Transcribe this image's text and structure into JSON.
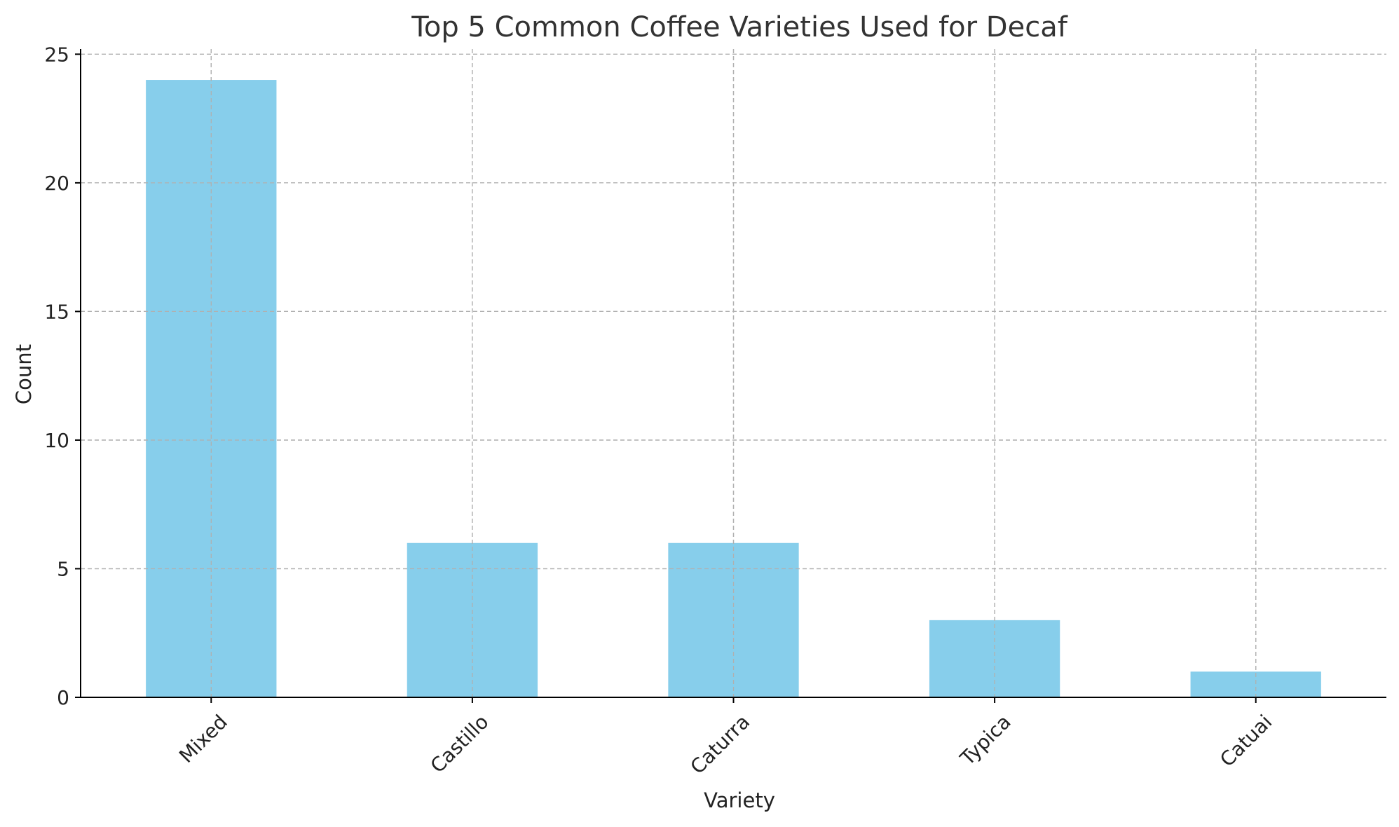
{
  "chart_data": {
    "type": "bar",
    "title": "Top 5 Common Coffee Varieties Used for Decaf",
    "xlabel": "Variety",
    "ylabel": "Count",
    "categories": [
      "Mixed",
      "Castillo",
      "Caturra",
      "Typica",
      "Catuai"
    ],
    "values": [
      24,
      6,
      6,
      3,
      1
    ],
    "ylim": [
      0,
      25.2
    ],
    "yticks": [
      0,
      5,
      10,
      15,
      20,
      25
    ],
    "grid": true,
    "bar_color": "#87ceeb",
    "xtick_rotation_deg": 45
  }
}
